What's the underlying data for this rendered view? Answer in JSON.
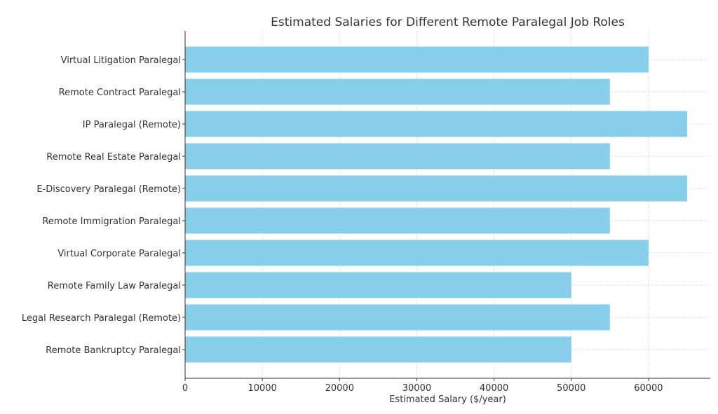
{
  "chart_data": {
    "type": "bar",
    "orientation": "horizontal",
    "title": "Estimated Salaries for Different Remote Paralegal Job Roles",
    "xlabel": "Estimated Salary ($/year)",
    "ylabel": "",
    "categories": [
      "Virtual Litigation Paralegal",
      "Remote Contract Paralegal",
      "IP Paralegal (Remote)",
      "Remote Real Estate Paralegal",
      "E-Discovery Paralegal (Remote)",
      "Remote Immigration Paralegal",
      "Virtual Corporate Paralegal",
      "Remote Family Law Paralegal",
      "Legal Research Paralegal (Remote)",
      "Remote Bankruptcy Paralegal"
    ],
    "values": [
      60000,
      55000,
      65000,
      55000,
      65000,
      55000,
      60000,
      50000,
      55000,
      50000
    ],
    "xlim": [
      0,
      68000
    ],
    "xticks": [
      "0",
      "10000",
      "20000",
      "30000",
      "40000",
      "50000",
      "60000"
    ],
    "grid": true,
    "bar_color": "#87ceeb"
  }
}
